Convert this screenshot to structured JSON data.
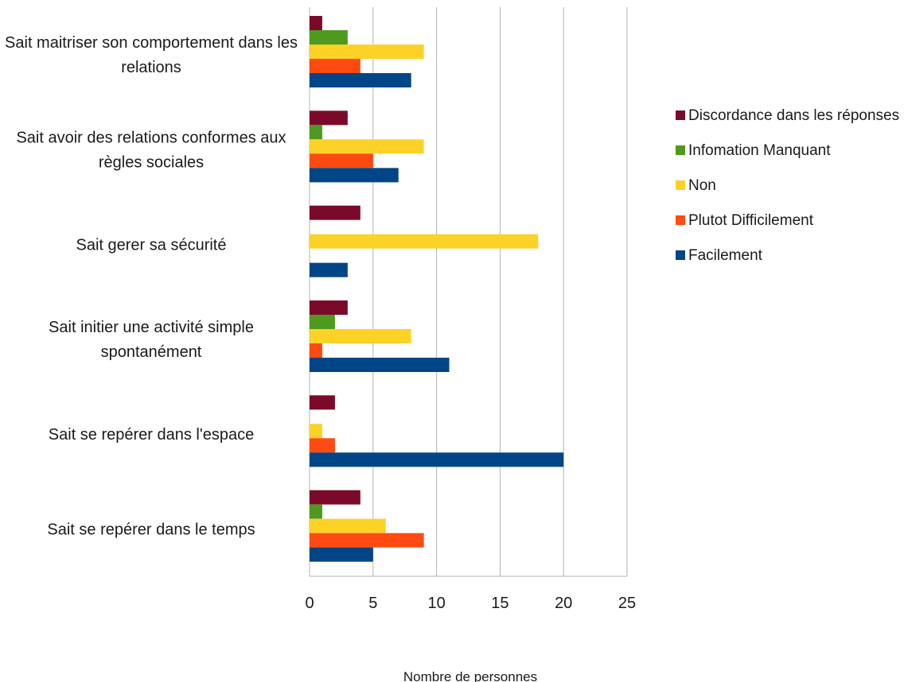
{
  "chart_data": {
    "type": "bar",
    "orientation": "horizontal",
    "categories": [
      [
        "Sait maitriser son comportement dans les",
        "relations"
      ],
      [
        "Sait avoir des relations conformes aux",
        "règles sociales"
      ],
      [
        "Sait gerer sa sécurité"
      ],
      [
        "Sait initier une activité simple",
        "spontanément"
      ],
      [
        "Sait se repérer dans l'espace"
      ],
      [
        "Sait se repérer dans le temps"
      ]
    ],
    "series": [
      {
        "name": "Discordance dans les réponses",
        "color": "#7b0a2a",
        "values": [
          1,
          3,
          4,
          3,
          2,
          4
        ]
      },
      {
        "name": "Infomation Manquant",
        "color": "#4e9a1e",
        "values": [
          3,
          1,
          0,
          2,
          0,
          1
        ]
      },
      {
        "name": "Non",
        "color": "#fdd226",
        "values": [
          9,
          9,
          18,
          8,
          1,
          6
        ]
      },
      {
        "name": "Plutot Difficilement",
        "color": "#ff4a12",
        "values": [
          4,
          5,
          0,
          1,
          2,
          9
        ]
      },
      {
        "name": "Facilement",
        "color": "#004586",
        "values": [
          8,
          7,
          3,
          11,
          20,
          5
        ]
      }
    ],
    "xlim": [
      0,
      25
    ],
    "xticks": [
      "0",
      "5",
      "10",
      "15",
      "20",
      "25"
    ],
    "xlabel": "Nombre de personnes",
    "ylabel": "",
    "title": "",
    "grid": true,
    "legend_position": "right"
  }
}
